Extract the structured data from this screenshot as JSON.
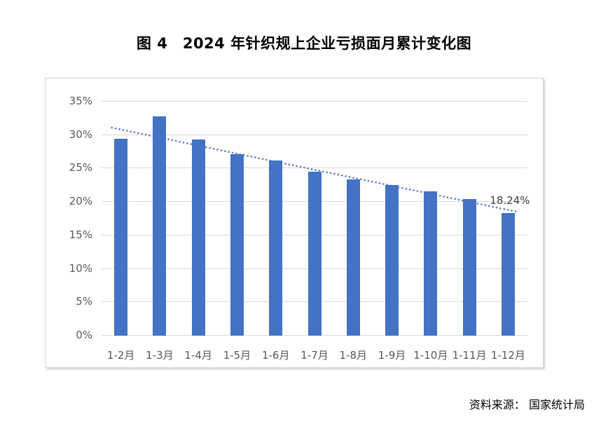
{
  "figure": {
    "title": "图 4　2024 年针织规上企业亏损面月累计变化图",
    "source_label": "资料来源： 国家统计局"
  },
  "chart_data": {
    "type": "bar",
    "title": "图 4　2024 年针织规上企业亏损面月累计变化图",
    "categories": [
      "1-2月",
      "1-3月",
      "1-4月",
      "1-5月",
      "1-6月",
      "1-7月",
      "1-8月",
      "1-9月",
      "1-10月",
      "1-11月",
      "1-12月"
    ],
    "values": [
      29.3,
      32.7,
      29.2,
      27.0,
      26.1,
      24.4,
      23.3,
      22.4,
      21.5,
      20.3,
      18.24
    ],
    "y_ticks": [
      "0%",
      "5%",
      "10%",
      "15%",
      "20%",
      "25%",
      "30%",
      "35%"
    ],
    "y_tick_values": [
      0,
      5,
      10,
      15,
      20,
      25,
      30,
      35
    ],
    "ylim": [
      0,
      35
    ],
    "xlabel": "",
    "ylabel": "",
    "grid": true,
    "legend": "none",
    "bar_color": "#4472C4",
    "gridline_color": "#d9d9d9",
    "tick_label_color": "#595959",
    "trendline": {
      "type": "linear",
      "style": "dotted",
      "color": "#4472C4",
      "start_value": 31.0,
      "end_value": 18.4
    },
    "annotation": {
      "text": "18.24%",
      "category": "1-12月",
      "value": 18.24
    }
  }
}
